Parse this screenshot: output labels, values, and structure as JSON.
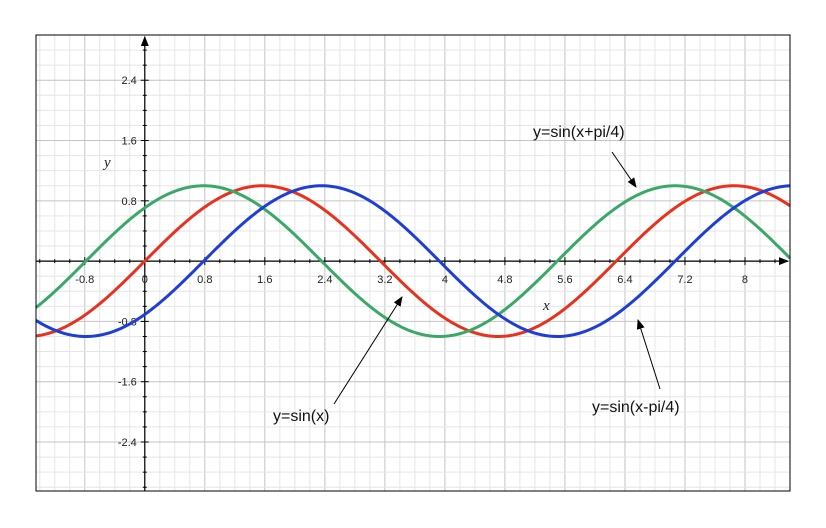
{
  "chart_data": {
    "type": "line",
    "title": "",
    "xlabel": "x",
    "ylabel": "y",
    "xlim": [
      -1.45,
      8.6
    ],
    "ylim": [
      -3.05,
      3.0
    ],
    "grid": true,
    "x_ticks": [
      {
        "value": -0.8,
        "label": "-0.8"
      },
      {
        "value": 0,
        "label": "0"
      },
      {
        "value": 0.8,
        "label": "0.8"
      },
      {
        "value": 1.6,
        "label": "1.6"
      },
      {
        "value": 2.4,
        "label": "2.4"
      },
      {
        "value": 3.2,
        "label": "3.2"
      },
      {
        "value": 4,
        "label": "4"
      },
      {
        "value": 4.8,
        "label": "4.8"
      },
      {
        "value": 5.6,
        "label": "5.6"
      },
      {
        "value": 6.4,
        "label": "6.4"
      },
      {
        "value": 7.2,
        "label": "7.2"
      },
      {
        "value": 8,
        "label": "8"
      }
    ],
    "y_ticks": [
      {
        "value": 2.4,
        "label": "2.4"
      },
      {
        "value": 1.6,
        "label": "1.6"
      },
      {
        "value": 0.8,
        "label": "0.8"
      },
      {
        "value": -0.8,
        "label": "-0.8"
      },
      {
        "value": -1.6,
        "label": "-1.6"
      },
      {
        "value": -2.4,
        "label": "-2.4"
      }
    ],
    "series": [
      {
        "name": "y=sin(x)",
        "function": "sin(x)",
        "phase": 0,
        "color": "#e8321e",
        "x": [
          -1.45,
          -1.2,
          -0.8,
          -0.4,
          0,
          0.4,
          0.8,
          1.2,
          1.6,
          2.0,
          2.4,
          2.8,
          3.2,
          3.6,
          4.0,
          4.4,
          4.8,
          5.2,
          5.6,
          6.0,
          6.4,
          6.8,
          7.2,
          7.6,
          8.0,
          8.4,
          8.6
        ],
        "values": [
          -0.99,
          -0.93,
          -0.72,
          -0.39,
          0.0,
          0.39,
          0.72,
          0.93,
          1.0,
          0.91,
          0.68,
          0.33,
          -0.06,
          -0.44,
          -0.76,
          -0.95,
          -1.0,
          -0.88,
          -0.63,
          -0.28,
          0.12,
          0.49,
          0.79,
          0.97,
          0.99,
          0.85,
          0.73
        ]
      },
      {
        "name": "y=sin(x+pi/4)",
        "function": "sin(x+pi/4)",
        "phase": 0.785398,
        "color": "#3aa866",
        "x": [
          -1.45,
          -1.2,
          -0.8,
          -0.4,
          0,
          0.4,
          0.8,
          1.2,
          1.6,
          2.0,
          2.4,
          2.8,
          3.2,
          3.6,
          4.0,
          4.4,
          4.8,
          5.2,
          5.6,
          6.0,
          6.4,
          6.8,
          7.2,
          7.6,
          8.0,
          8.4,
          8.6
        ],
        "values": [
          -0.59,
          -0.4,
          -0.01,
          0.38,
          0.71,
          0.93,
          1.0,
          0.91,
          0.68,
          0.34,
          -0.05,
          -0.43,
          -0.75,
          -0.95,
          -1.0,
          -0.89,
          -0.65,
          -0.29,
          0.1,
          0.48,
          0.78,
          0.96,
          0.99,
          0.86,
          0.6,
          0.24,
          0.05
        ]
      },
      {
        "name": "y=sin(x-pi/4)",
        "function": "sin(x-pi/4)",
        "phase": -0.785398,
        "color": "#1e3fd6",
        "x": [
          -1.45,
          -1.2,
          -0.8,
          -0.4,
          0,
          0.4,
          0.8,
          1.2,
          1.6,
          2.0,
          2.4,
          2.8,
          3.2,
          3.6,
          4.0,
          4.4,
          4.8,
          5.2,
          5.6,
          6.0,
          6.4,
          6.8,
          7.2,
          7.6,
          8.0,
          8.4,
          8.6
        ],
        "values": [
          -0.81,
          -0.93,
          -1.0,
          -0.93,
          -0.71,
          -0.38,
          0.01,
          0.4,
          0.73,
          0.94,
          1.0,
          0.9,
          0.66,
          0.31,
          -0.08,
          -0.46,
          -0.77,
          -0.96,
          -1.0,
          -0.87,
          -0.62,
          -0.26,
          0.14,
          0.51,
          0.82,
          0.98,
          1.0
        ]
      }
    ],
    "annotations": [
      {
        "text": "y=sin(x+pi/4)",
        "series": "y=sin(x+pi/4)",
        "position": "upper-right"
      },
      {
        "text": "y=sin(x)",
        "series": "y=sin(x)",
        "position": "lower-center"
      },
      {
        "text": "y=sin(x-pi/4)",
        "series": "y=sin(x-pi/4)",
        "position": "lower-right"
      }
    ]
  }
}
